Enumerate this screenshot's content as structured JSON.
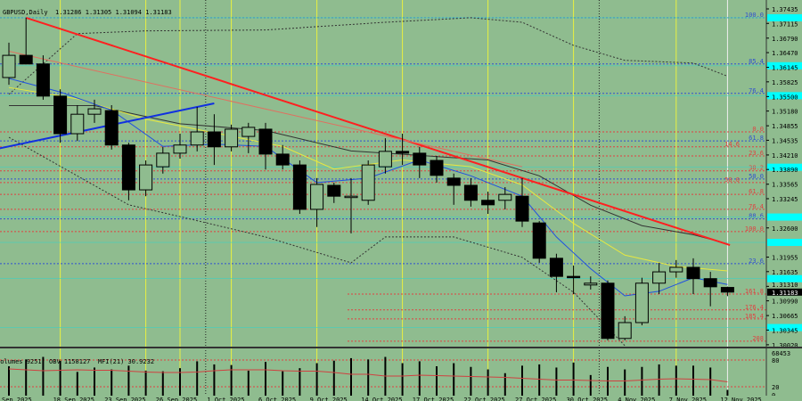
{
  "header": {
    "symbol": "GBPUSD,Daily",
    "open": "1.31286",
    "high": "1.31305",
    "low": "1.31094",
    "close": "1.31183"
  },
  "subwindow": {
    "volumes": "Volumes 9251",
    "obv": "OBV 1158127",
    "mfi": "MFI(21) 30.9232",
    "max_label": "68453",
    "levels": [
      "80",
      "20",
      "0"
    ]
  },
  "colors": {
    "background": "#8fbc8f",
    "bear": "#000000",
    "bull": "#8fbc8f",
    "trend_red": "#ff2020",
    "trend_blue": "#1030e0",
    "fib_red": "#e04040",
    "fib_blue": "#3050d0",
    "highlight": "#00ffff",
    "mfi": "#d04040",
    "vline_yellow": "#e8f040"
  },
  "chart_data": {
    "type": "candlestick",
    "dates": [
      "2025-09-15",
      "2025-09-16",
      "2025-09-17",
      "2025-09-18",
      "2025-09-19",
      "2025-09-22",
      "2025-09-23",
      "2025-09-24",
      "2025-09-25",
      "2025-09-26",
      "2025-09-29",
      "2025-09-30",
      "2025-10-01",
      "2025-10-02",
      "2025-10-03",
      "2025-10-06",
      "2025-10-07",
      "2025-10-08",
      "2025-10-09",
      "2025-10-10",
      "2025-10-13",
      "2025-10-14",
      "2025-10-15",
      "2025-10-16",
      "2025-10-17",
      "2025-10-20",
      "2025-10-21",
      "2025-10-22",
      "2025-10-23",
      "2025-10-24",
      "2025-10-27",
      "2025-10-28",
      "2025-10-29",
      "2025-10-30",
      "2025-10-31",
      "2025-11-03",
      "2025-11-04",
      "2025-11-05",
      "2025-11-06",
      "2025-11-07",
      "2025-11-10",
      "2025-11-11",
      "2025-11-12"
    ],
    "ohlc": [
      [
        1.3592,
        1.3669,
        1.3576,
        1.3641
      ],
      [
        1.3641,
        1.3724,
        1.3622,
        1.3622
      ],
      [
        1.3622,
        1.3641,
        1.3543,
        1.3551
      ],
      [
        1.3551,
        1.3566,
        1.3448,
        1.3468
      ],
      [
        1.3468,
        1.3531,
        1.3452,
        1.3511
      ],
      [
        1.3511,
        1.3543,
        1.3492,
        1.3523
      ],
      [
        1.3519,
        1.3531,
        1.3433,
        1.3443
      ],
      [
        1.3443,
        1.3448,
        1.3321,
        1.3344
      ],
      [
        1.3344,
        1.3409,
        1.333,
        1.3399
      ],
      [
        1.3395,
        1.3439,
        1.338,
        1.3425
      ],
      [
        1.3425,
        1.3468,
        1.3413,
        1.3443
      ],
      [
        1.3443,
        1.3527,
        1.3429,
        1.3472
      ],
      [
        1.3472,
        1.3511,
        1.3399,
        1.3439
      ],
      [
        1.3439,
        1.3488,
        1.3429,
        1.3478
      ],
      [
        1.3462,
        1.3492,
        1.3425,
        1.3482
      ],
      [
        1.3478,
        1.3492,
        1.3389,
        1.3423
      ],
      [
        1.3423,
        1.3443,
        1.3389,
        1.3399
      ],
      [
        1.3399,
        1.3409,
        1.3291,
        1.3301
      ],
      [
        1.3301,
        1.337,
        1.3262,
        1.3356
      ],
      [
        1.3354,
        1.336,
        1.3315,
        1.333
      ],
      [
        1.3327,
        1.337,
        1.3248,
        1.333
      ],
      [
        1.3321,
        1.3409,
        1.3311,
        1.3399
      ],
      [
        1.3395,
        1.3458,
        1.338,
        1.3429
      ],
      [
        1.3429,
        1.3468,
        1.3399,
        1.3425
      ],
      [
        1.3425,
        1.3439,
        1.337,
        1.3399
      ],
      [
        1.3409,
        1.3419,
        1.336,
        1.3376
      ],
      [
        1.337,
        1.338,
        1.3311,
        1.3354
      ],
      [
        1.3354,
        1.337,
        1.3307,
        1.3321
      ],
      [
        1.3321,
        1.334,
        1.3291,
        1.3311
      ],
      [
        1.3321,
        1.335,
        1.3301,
        1.3334
      ],
      [
        1.333,
        1.337,
        1.3262,
        1.3275
      ],
      [
        1.3271,
        1.3275,
        1.3183,
        1.3193
      ],
      [
        1.3193,
        1.3203,
        1.3118,
        1.3153
      ],
      [
        1.3153,
        1.3177,
        1.3114,
        1.315
      ],
      [
        1.3134,
        1.3153,
        1.3124,
        1.3138
      ],
      [
        1.3138,
        1.3144,
        1.3012,
        1.3016
      ],
      [
        1.3016,
        1.3065,
        1.3012,
        1.3051
      ],
      [
        1.3051,
        1.315,
        1.3045,
        1.3138
      ],
      [
        1.3138,
        1.3183,
        1.3114,
        1.3163
      ],
      [
        1.3163,
        1.3189,
        1.315,
        1.3173
      ],
      [
        1.3173,
        1.3193,
        1.3114,
        1.3148
      ],
      [
        1.3148,
        1.3163,
        1.3087,
        1.313
      ],
      [
        1.31286,
        1.31305,
        1.31094,
        1.31183
      ]
    ],
    "volume": [
      47000,
      58000,
      62000,
      56000,
      38000,
      45000,
      42000,
      48000,
      40000,
      39000,
      44000,
      55000,
      50000,
      49000,
      40000,
      54000,
      39000,
      44000,
      52000,
      56000,
      60000,
      58000,
      62000,
      52000,
      55000,
      47000,
      52000,
      46000,
      42000,
      36000,
      48000,
      50000,
      45000,
      53000,
      33000,
      46000,
      42000,
      46000,
      50000,
      48000,
      48000,
      45000,
      9251
    ],
    "mfi": [
      60,
      58,
      56,
      57,
      58,
      57,
      57,
      55,
      53,
      52,
      52,
      53,
      56,
      58,
      58,
      58,
      56,
      55,
      55,
      52,
      48,
      48,
      44,
      44,
      46,
      45,
      44,
      43,
      42,
      41,
      39,
      37,
      35,
      35,
      34,
      33,
      33,
      35,
      37,
      38,
      37,
      36,
      31
    ],
    "yaxis_ticks": [
      "1.37435",
      "1.37115",
      "1.36790",
      "1.36470",
      "1.36145",
      "1.35825",
      "1.35500",
      "1.35180",
      "1.34855",
      "1.34535",
      "1.34210",
      "1.33890",
      "1.33565",
      "1.33245",
      "1.32600",
      "1.31955",
      "1.31635",
      "1.31310",
      "1.30990",
      "1.30665",
      "1.30345",
      "1.30020"
    ],
    "current_price": "1.31183",
    "xaxis_labels": [
      [
        "2025-09-15",
        "Sep 2025"
      ],
      [
        "2025-09-18",
        "18 Sep 2025"
      ],
      [
        "2025-09-23",
        "23 Sep 2025"
      ],
      [
        "2025-09-26",
        "26 Sep 2025"
      ],
      [
        "2025-10-01",
        "1 Oct 2025"
      ],
      [
        "2025-10-06",
        "6 Oct 2025"
      ],
      [
        "2025-10-09",
        "9 Oct 2025"
      ],
      [
        "2025-10-14",
        "14 Oct 2025"
      ],
      [
        "2025-10-17",
        "17 Oct 2025"
      ],
      [
        "2025-10-22",
        "22 Oct 2025"
      ],
      [
        "2025-10-27",
        "27 Oct 2025"
      ],
      [
        "2025-10-30",
        "30 Oct 2025"
      ],
      [
        "2025-11-04",
        "4 Nov 2025"
      ],
      [
        "2025-11-07",
        "7 Nov 2025"
      ],
      [
        "2025-11-12",
        "12 Nov 2025"
      ]
    ],
    "fib_blue": [
      [
        "100.0",
        1.3724
      ],
      [
        "85.4",
        1.3622
      ],
      [
        "76.4",
        1.3557
      ],
      [
        "61.8",
        1.3452
      ],
      [
        "50.0",
        1.3368
      ],
      [
        "88.6",
        1.328
      ],
      [
        "23.6",
        1.3181
      ]
    ],
    "fib_red": [
      [
        "0.0",
        1.3472
      ],
      [
        "14.6",
        1.3439
      ],
      [
        "23.6",
        1.3419
      ],
      [
        "38.2",
        1.3386
      ],
      [
        "50.0",
        1.336
      ],
      [
        "61.8",
        1.3334
      ],
      [
        "76.4",
        1.3301
      ],
      [
        "100.0",
        1.3252
      ],
      [
        "161.8",
        1.3114
      ],
      [
        "176.4",
        1.3079
      ],
      [
        "185.4",
        1.3059
      ],
      [
        "208",
        1.301
      ]
    ],
    "highlight_levels": [
      1.3724,
      1.3618,
      1.3552,
      1.3394,
      1.3284,
      1.3228,
      1.3148,
      1.304
    ],
    "trendlines": [
      {
        "color": "red",
        "from": [
          "2025-09-16",
          1.3724
        ],
        "to": [
          "2025-11-13",
          1.3222
        ]
      },
      {
        "color": "salmon",
        "from": [
          "2025-09-15",
          1.365
        ],
        "to": [
          "2025-10-27",
          1.3395
        ]
      },
      {
        "color": "blue",
        "from": [
          "2025-09-12",
          1.3423
        ],
        "to": [
          "2025-10-01",
          1.3535
        ]
      }
    ],
    "bollinger_upper": [
      [
        0,
        1.3555
      ],
      [
        4,
        1.3689
      ],
      [
        8,
        1.3695
      ],
      [
        15,
        1.3697
      ],
      [
        22,
        1.3714
      ],
      [
        27,
        1.3724
      ],
      [
        30,
        1.3714
      ],
      [
        33,
        1.3663
      ],
      [
        36,
        1.363
      ],
      [
        40,
        1.3624
      ],
      [
        42,
        1.3595
      ]
    ],
    "bollinger_lower": [
      [
        0,
        1.346
      ],
      [
        7,
        1.3311
      ],
      [
        10,
        1.3285
      ],
      [
        15,
        1.324
      ],
      [
        20,
        1.3183
      ],
      [
        22,
        1.324
      ],
      [
        26,
        1.324
      ],
      [
        30,
        1.3195
      ],
      [
        33,
        1.3118
      ],
      [
        36,
        1.3
      ]
    ],
    "ma_fast": [
      [
        0,
        1.359
      ],
      [
        3,
        1.356
      ],
      [
        6,
        1.352
      ],
      [
        9,
        1.344
      ],
      [
        12,
        1.3445
      ],
      [
        15,
        1.344
      ],
      [
        18,
        1.336
      ],
      [
        21,
        1.337
      ],
      [
        24,
        1.341
      ],
      [
        27,
        1.3375
      ],
      [
        30,
        1.333
      ],
      [
        32,
        1.324
      ],
      [
        34,
        1.317
      ],
      [
        36,
        1.311
      ],
      [
        38,
        1.312
      ],
      [
        40,
        1.315
      ],
      [
        42,
        1.3135
      ]
    ],
    "ma_mid": [
      [
        0,
        1.357
      ],
      [
        4,
        1.3545
      ],
      [
        8,
        1.35
      ],
      [
        12,
        1.347
      ],
      [
        16,
        1.344
      ],
      [
        19,
        1.339
      ],
      [
        23,
        1.341
      ],
      [
        27,
        1.3395
      ],
      [
        30,
        1.3355
      ],
      [
        33,
        1.327
      ],
      [
        36,
        1.32
      ],
      [
        39,
        1.3175
      ],
      [
        42,
        1.3165
      ]
    ],
    "ma_slow": [
      [
        0,
        1.353
      ],
      [
        5,
        1.353
      ],
      [
        10,
        1.349
      ],
      [
        15,
        1.3475
      ],
      [
        20,
        1.343
      ],
      [
        24,
        1.342
      ],
      [
        28,
        1.341
      ],
      [
        31,
        1.3375
      ],
      [
        34,
        1.331
      ],
      [
        37,
        1.3265
      ],
      [
        40,
        1.3245
      ],
      [
        42,
        1.3225
      ]
    ]
  }
}
